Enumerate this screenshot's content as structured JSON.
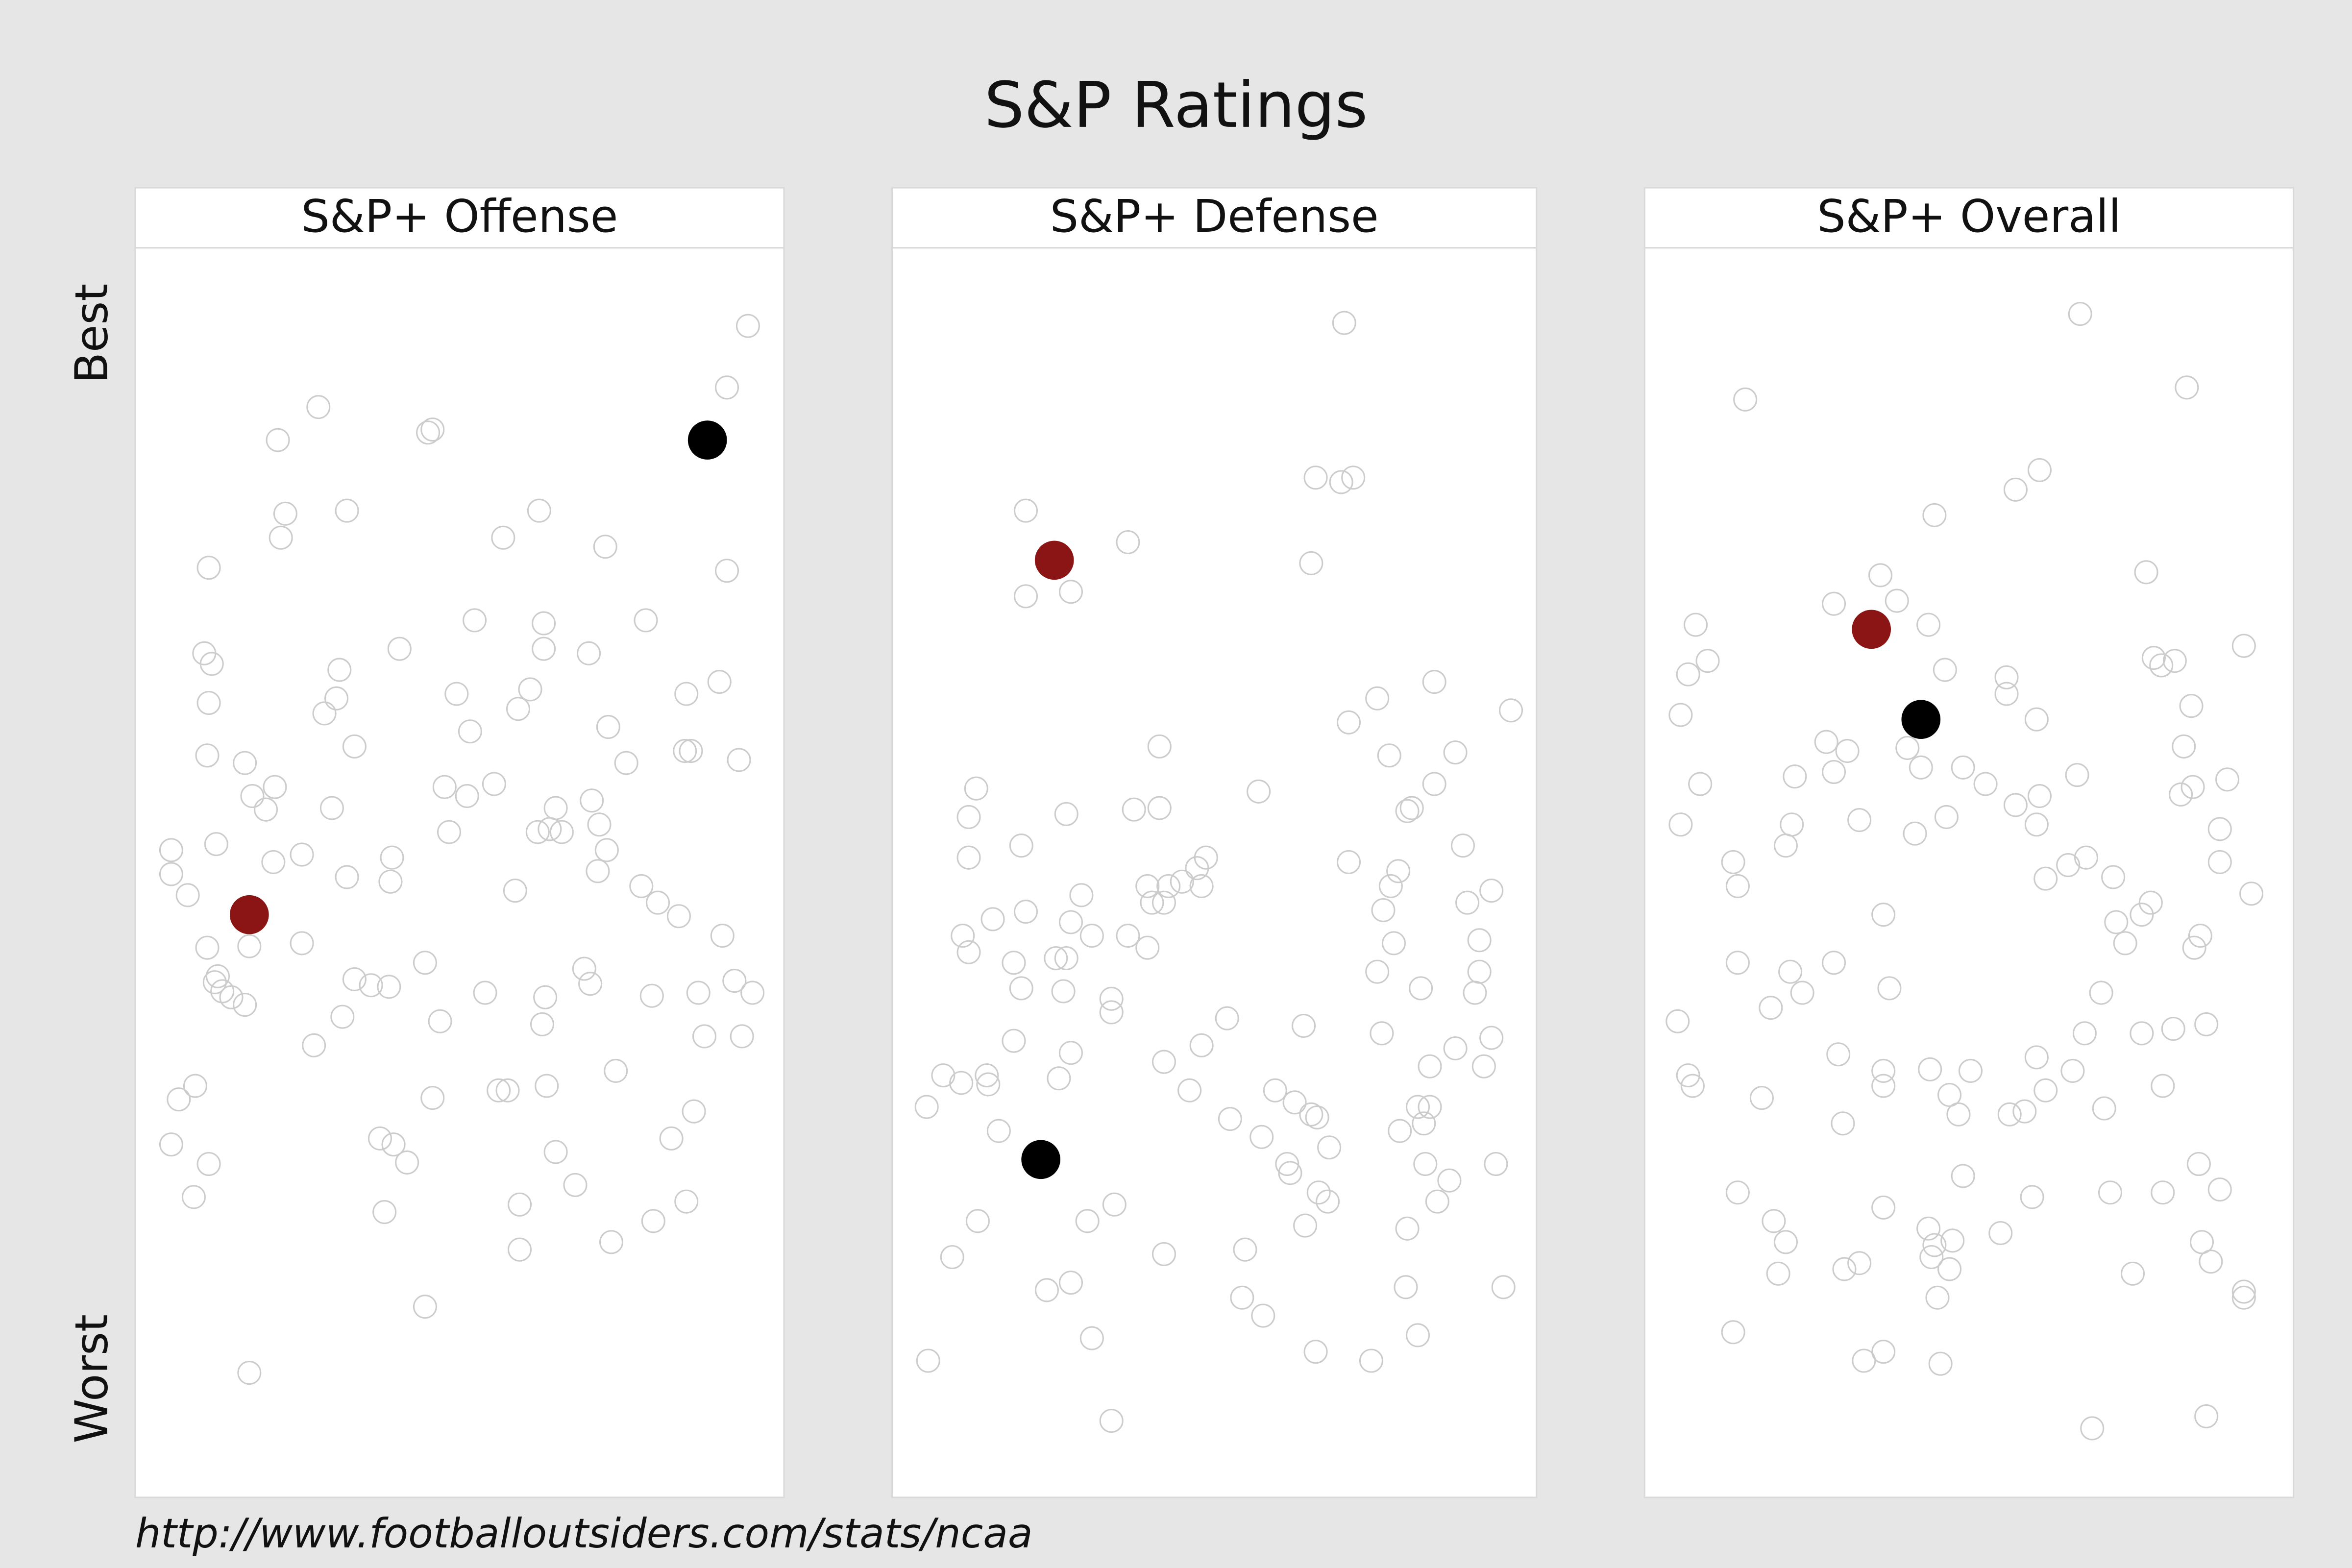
{
  "chart_data": {
    "type": "scatter",
    "title": "S&P Ratings",
    "y_top_label": "Best",
    "y_bottom_label": "Worst",
    "source": "http://www.footballoutsiders.com/stats/ncaa",
    "point_color": "#cccccc",
    "panels": [
      {
        "title": "S&P+ Offense",
        "xlim": [
          0,
          432
        ],
        "ylim": [
          832,
          0
        ],
        "x": [
          408,
          394,
          122,
          95,
          198,
          195,
          100,
          141,
          97,
          269,
          245,
          313,
          49,
          394,
          340,
          226,
          272,
          46,
          51,
          176,
          272,
          302,
          136,
          49,
          134,
          214,
          263,
          367,
          389,
          126,
          255,
          223,
          315,
          146,
          48,
          366,
          370,
          402,
          73,
          327,
          93,
          78,
          87,
          131,
          206,
          239,
          221,
          304,
          280,
          209,
          268,
          276,
          284,
          309,
          24,
          54,
          111,
          92,
          171,
          314,
          24,
          141,
          170,
          308,
          35,
          253,
          337,
          348,
          362,
          391,
          48,
          76,
          111,
          193,
          299,
          55,
          53,
          58,
          64,
          73,
          146,
          157,
          169,
          233,
          273,
          303,
          344,
          375,
          399,
          411,
          138,
          203,
          271,
          119,
          379,
          404,
          320,
          40,
          29,
          198,
          242,
          248,
          274,
          372,
          24,
          163,
          172,
          181,
          49,
          280,
          357,
          39,
          293,
          166,
          256,
          367,
          256,
          317,
          345,
          193,
          76
        ],
        "y": [
          52,
          93,
          106,
          128,
          121,
          123,
          177,
          175,
          193,
          175,
          193,
          199,
          213,
          215,
          248,
          248,
          250,
          270,
          277,
          267,
          267,
          270,
          281,
          303,
          300,
          297,
          294,
          297,
          289,
          310,
          307,
          322,
          319,
          332,
          338,
          335,
          335,
          341,
          343,
          343,
          359,
          365,
          374,
          373,
          359,
          357,
          365,
          368,
          373,
          389,
          389,
          387,
          389,
          384,
          401,
          397,
          404,
          409,
          406,
          401,
          417,
          419,
          422,
          415,
          431,
          428,
          425,
          436,
          445,
          458,
          466,
          465,
          463,
          476,
          480,
          485,
          489,
          495,
          499,
          504,
          487,
          491,
          492,
          496,
          499,
          490,
          498,
          496,
          488,
          496,
          512,
          515,
          517,
          531,
          525,
          525,
          548,
          558,
          567,
          566,
          561,
          561,
          558,
          575,
          597,
          593,
          597,
          609,
          610,
          602,
          593,
          632,
          624,
          642,
          637,
          635,
          667,
          662,
          648,
          705,
          749
        ],
        "highlights": [
          {
            "color": "#8b1414",
            "x": 76,
            "y": 444
          },
          {
            "color": "#000000",
            "x": 381,
            "y": 128
          }
        ]
      },
      {
        "title": "S&P+ Defense",
        "xlim": [
          0,
          429
        ],
        "ylim": [
          832,
          0
        ],
        "x": [
          301,
          282,
          299,
          307,
          89,
          157,
          279,
          89,
          119,
          323,
          361,
          412,
          304,
          178,
          331,
          375,
          56,
          244,
          361,
          51,
          116,
          161,
          178,
          343,
          346,
          86,
          380,
          51,
          203,
          209,
          304,
          337,
          170,
          184,
          193,
          206,
          332,
          126,
          89,
          67,
          119,
          173,
          181,
          327,
          383,
          399,
          47,
          51,
          81,
          109,
          116,
          133,
          157,
          170,
          334,
          391,
          86,
          114,
          146,
          146,
          323,
          352,
          391,
          388,
          81,
          119,
          206,
          223,
          274,
          326,
          375,
          399,
          111,
          34,
          46,
          63,
          64,
          181,
          198,
          255,
          268,
          358,
          394,
          23,
          71,
          225,
          246,
          279,
          283,
          350,
          358,
          338,
          354,
          291,
          263,
          265,
          355,
          371,
          402,
          148,
          284,
          290,
          363,
          57,
          130,
          275,
          40,
          181,
          235,
          343,
          103,
          119,
          233,
          247,
          342,
          407,
          133,
          350,
          282,
          319,
          24,
          146
        ],
        "y": [
          50,
          153,
          156,
          153,
          175,
          196,
          210,
          232,
          229,
          300,
          289,
          308,
          316,
          332,
          338,
          336,
          360,
          362,
          357,
          379,
          377,
          374,
          373,
          375,
          373,
          398,
          398,
          406,
          413,
          406,
          409,
          415,
          425,
          425,
          422,
          425,
          425,
          431,
          442,
          447,
          449,
          436,
          436,
          441,
          436,
          428,
          458,
          469,
          476,
          473,
          473,
          458,
          458,
          466,
          463,
          461,
          493,
          495,
          500,
          509,
          482,
          493,
          482,
          496,
          528,
          536,
          531,
          513,
          518,
          523,
          533,
          526,
          553,
          551,
          556,
          551,
          557,
          542,
          561,
          561,
          569,
          545,
          545,
          572,
          588,
          580,
          592,
          577,
          579,
          572,
          572,
          588,
          583,
          599,
          610,
          616,
          610,
          621,
          610,
          637,
          629,
          635,
          635,
          648,
          648,
          651,
          672,
          670,
          667,
          653,
          694,
          689,
          699,
          711,
          692,
          692,
          726,
          724,
          735,
          741,
          741,
          781
        ],
        "highlights": [
          {
            "color": "#8b1414",
            "x": 108,
            "y": 208
          },
          {
            "color": "#000000",
            "x": 99,
            "y": 607
          }
        ]
      },
      {
        "title": "S&P+ Overall",
        "xlim": [
          0,
          432
        ],
        "ylim": [
          832,
          0
        ],
        "x": [
          290,
          361,
          67,
          263,
          247,
          193,
          334,
          157,
          126,
          168,
          189,
          34,
          399,
          42,
          29,
          339,
          353,
          344,
          200,
          241,
          241,
          364,
          24,
          261,
          121,
          135,
          175,
          359,
          126,
          184,
          100,
          212,
          227,
          288,
          357,
          365,
          388,
          37,
          263,
          247,
          143,
          201,
          261,
          98,
          94,
          180,
          383,
          24,
          59,
          62,
          282,
          294,
          267,
          312,
          383,
          404,
          159,
          337,
          314,
          331,
          320,
          370,
          366,
          62,
          126,
          97,
          105,
          84,
          163,
          304,
          22,
          293,
          331,
          352,
          374,
          129,
          159,
          190,
          217,
          261,
          285,
          29,
          32,
          159,
          203,
          209,
          243,
          253,
          267,
          306,
          345,
          78,
          132,
          62,
          212,
          258,
          310,
          345,
          369,
          383,
          86,
          94,
          89,
          159,
          189,
          205,
          193,
          237,
          191,
          203,
          133,
          143,
          325,
          371,
          377,
          399,
          399,
          195,
          59,
          146,
          159,
          197,
          374,
          298
        ],
        "y": [
          44,
          93,
          101,
          148,
          161,
          178,
          216,
          218,
          237,
          235,
          251,
          251,
          265,
          275,
          284,
          273,
          275,
          278,
          281,
          286,
          297,
          305,
          311,
          314,
          329,
          335,
          333,
          332,
          349,
          346,
          352,
          346,
          357,
          351,
          364,
          359,
          354,
          357,
          365,
          371,
          381,
          379,
          384,
          384,
          398,
          390,
          387,
          384,
          409,
          425,
          411,
          406,
          420,
          419,
          409,
          430,
          444,
          436,
          449,
          444,
          463,
          458,
          466,
          476,
          476,
          482,
          496,
          506,
          493,
          496,
          515,
          523,
          523,
          520,
          517,
          537,
          548,
          547,
          548,
          539,
          548,
          551,
          558,
          558,
          564,
          577,
          577,
          575,
          561,
          573,
          558,
          566,
          583,
          629,
          618,
          632,
          629,
          629,
          610,
          627,
          648,
          662,
          683,
          639,
          653,
          661,
          664,
          656,
          672,
          680,
          680,
          676,
          683,
          662,
          675,
          695,
          699,
          699,
          722,
          741,
          735,
          743,
          778,
          786
        ],
        "highlights": [
          {
            "color": "#8b1414",
            "x": 151,
            "y": 254
          },
          {
            "color": "#000000",
            "x": 184,
            "y": 314
          }
        ]
      }
    ]
  }
}
